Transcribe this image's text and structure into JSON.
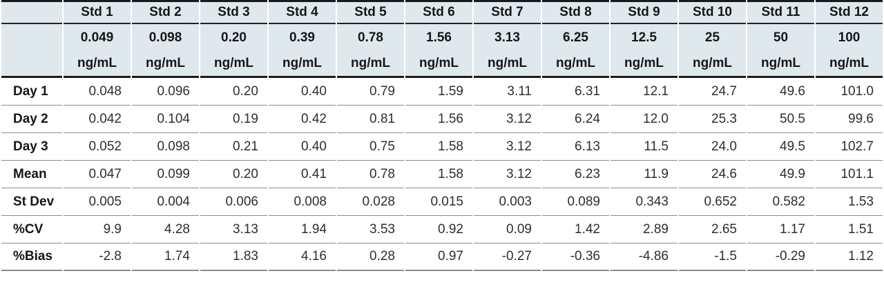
{
  "table": {
    "columns": [
      {
        "std": "Std 1",
        "conc": "0.049",
        "unit": "ng/mL"
      },
      {
        "std": "Std 2",
        "conc": "0.098",
        "unit": "ng/mL"
      },
      {
        "std": "Std 3",
        "conc": "0.20",
        "unit": "ng/mL"
      },
      {
        "std": "Std 4",
        "conc": "0.39",
        "unit": "ng/mL"
      },
      {
        "std": "Std 5",
        "conc": "0.78",
        "unit": "ng/mL"
      },
      {
        "std": "Std 6",
        "conc": "1.56",
        "unit": "ng/mL"
      },
      {
        "std": "Std 7",
        "conc": "3.13",
        "unit": "ng/mL"
      },
      {
        "std": "Std 8",
        "conc": "6.25",
        "unit": "ng/mL"
      },
      {
        "std": "Std 9",
        "conc": "12.5",
        "unit": "ng/mL"
      },
      {
        "std": "Std 10",
        "conc": "25",
        "unit": "ng/mL"
      },
      {
        "std": "Std 11",
        "conc": "50",
        "unit": "ng/mL"
      },
      {
        "std": "Std 12",
        "conc": "100",
        "unit": "ng/mL"
      }
    ],
    "rows": [
      {
        "label": "Day 1",
        "values": [
          "0.048",
          "0.096",
          "0.20",
          "0.40",
          "0.79",
          "1.59",
          "3.11",
          "6.31",
          "12.1",
          "24.7",
          "49.6",
          "101.0"
        ]
      },
      {
        "label": "Day 2",
        "values": [
          "0.042",
          "0.104",
          "0.19",
          "0.42",
          "0.81",
          "1.56",
          "3.12",
          "6.24",
          "12.0",
          "25.3",
          "50.5",
          "99.6"
        ]
      },
      {
        "label": "Day 3",
        "values": [
          "0.052",
          "0.098",
          "0.21",
          "0.40",
          "0.75",
          "1.58",
          "3.12",
          "6.13",
          "11.5",
          "24.0",
          "49.5",
          "102.7"
        ]
      },
      {
        "label": "Mean",
        "values": [
          "0.047",
          "0.099",
          "0.20",
          "0.41",
          "0.78",
          "1.58",
          "3.12",
          "6.23",
          "11.9",
          "24.6",
          "49.9",
          "101.1"
        ]
      },
      {
        "label": "St Dev",
        "values": [
          "0.005",
          "0.004",
          "0.006",
          "0.008",
          "0.028",
          "0.015",
          "0.003",
          "0.089",
          "0.343",
          "0.652",
          "0.582",
          "1.53"
        ]
      },
      {
        "label": "%CV",
        "values": [
          "9.9",
          "4.28",
          "3.13",
          "1.94",
          "3.53",
          "0.92",
          "0.09",
          "1.42",
          "2.89",
          "2.65",
          "1.17",
          "1.51"
        ]
      },
      {
        "label": "%Bias",
        "values": [
          "-2.8",
          "1.74",
          "1.83",
          "4.16",
          "0.28",
          "0.97",
          "-0.27",
          "-0.36",
          "-4.86",
          "-1.5",
          "-0.29",
          "1.12"
        ]
      }
    ]
  },
  "colors": {
    "header_background": "#dfe9ed",
    "thick_rule": "#1a1a1a",
    "row_rule": "#8a8a8a",
    "header_text": "#161616",
    "data_text": "#2e2e2e"
  }
}
